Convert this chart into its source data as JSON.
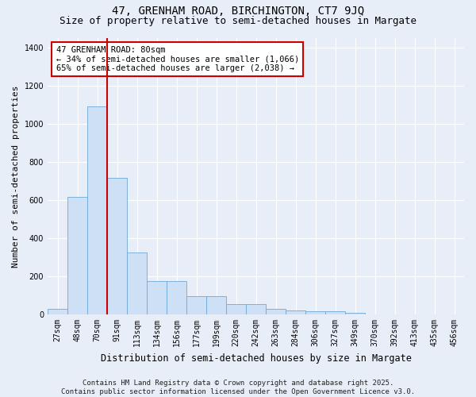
{
  "title": "47, GRENHAM ROAD, BIRCHINGTON, CT7 9JQ",
  "subtitle": "Size of property relative to semi-detached houses in Margate",
  "xlabel": "Distribution of semi-detached houses by size in Margate",
  "ylabel": "Number of semi-detached properties",
  "categories": [
    "27sqm",
    "48sqm",
    "70sqm",
    "91sqm",
    "113sqm",
    "134sqm",
    "156sqm",
    "177sqm",
    "199sqm",
    "220sqm",
    "242sqm",
    "263sqm",
    "284sqm",
    "306sqm",
    "327sqm",
    "349sqm",
    "370sqm",
    "392sqm",
    "413sqm",
    "435sqm",
    "456sqm"
  ],
  "values": [
    30,
    615,
    1090,
    715,
    325,
    175,
    175,
    95,
    95,
    55,
    55,
    30,
    20,
    15,
    15,
    10,
    0,
    0,
    0,
    0,
    0
  ],
  "bar_color": "#cde0f5",
  "bar_edge_color": "#6fa8d8",
  "red_line_index": 2,
  "property_label": "47 GRENHAM ROAD: 80sqm",
  "smaller_pct": "34% of semi-detached houses are smaller (1,066)",
  "larger_pct": "65% of semi-detached houses are larger (2,038)",
  "annotation_box_color": "#ffffff",
  "annotation_box_edge_color": "#cc0000",
  "red_line_color": "#cc0000",
  "ylim": [
    0,
    1450
  ],
  "yticks": [
    0,
    200,
    400,
    600,
    800,
    1000,
    1200,
    1400
  ],
  "background_color": "#e8eef8",
  "grid_color": "#ffffff",
  "footnote": "Contains HM Land Registry data © Crown copyright and database right 2025.\nContains public sector information licensed under the Open Government Licence v3.0.",
  "title_fontsize": 10,
  "subtitle_fontsize": 9,
  "xlabel_fontsize": 8.5,
  "ylabel_fontsize": 8,
  "tick_fontsize": 7,
  "annotation_fontsize": 7.5,
  "footnote_fontsize": 6.5
}
